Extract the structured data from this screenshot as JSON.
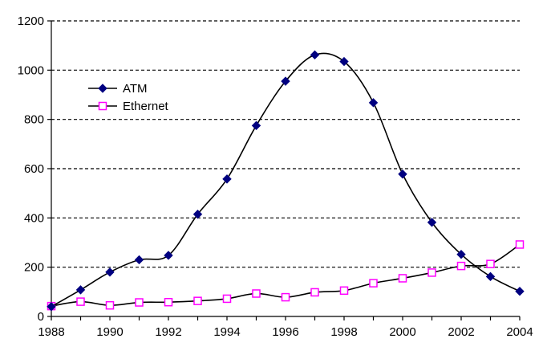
{
  "chart_data": {
    "type": "line",
    "title": "",
    "xlabel": "",
    "ylabel": "",
    "x": [
      1988,
      1989,
      1990,
      1991,
      1992,
      1993,
      1994,
      1995,
      1996,
      1997,
      1998,
      1999,
      2000,
      2001,
      2002,
      2003,
      2004
    ],
    "xlim": [
      1988,
      2004
    ],
    "ylim": [
      0,
      1200
    ],
    "x_ticks": [
      "1988",
      "1990",
      "1992",
      "1994",
      "1996",
      "1998",
      "2000",
      "2002",
      "2004"
    ],
    "y_ticks": [
      "0",
      "200",
      "400",
      "600",
      "800",
      "1000",
      "1200"
    ],
    "grid": "horizontal-dashed",
    "legend_position": "upper-left",
    "series": [
      {
        "name": "ATM",
        "color": "#000080",
        "marker": "filled-diamond",
        "values": [
          40,
          108,
          180,
          230,
          248,
          415,
          558,
          775,
          955,
          1062,
          1035,
          868,
          578,
          382,
          252,
          162,
          102
        ]
      },
      {
        "name": "Ethernet",
        "color": "#ff00ff",
        "marker": "open-square",
        "values": [
          42,
          60,
          45,
          57,
          58,
          63,
          72,
          93,
          78,
          98,
          105,
          135,
          155,
          178,
          205,
          213,
          292
        ]
      }
    ]
  }
}
